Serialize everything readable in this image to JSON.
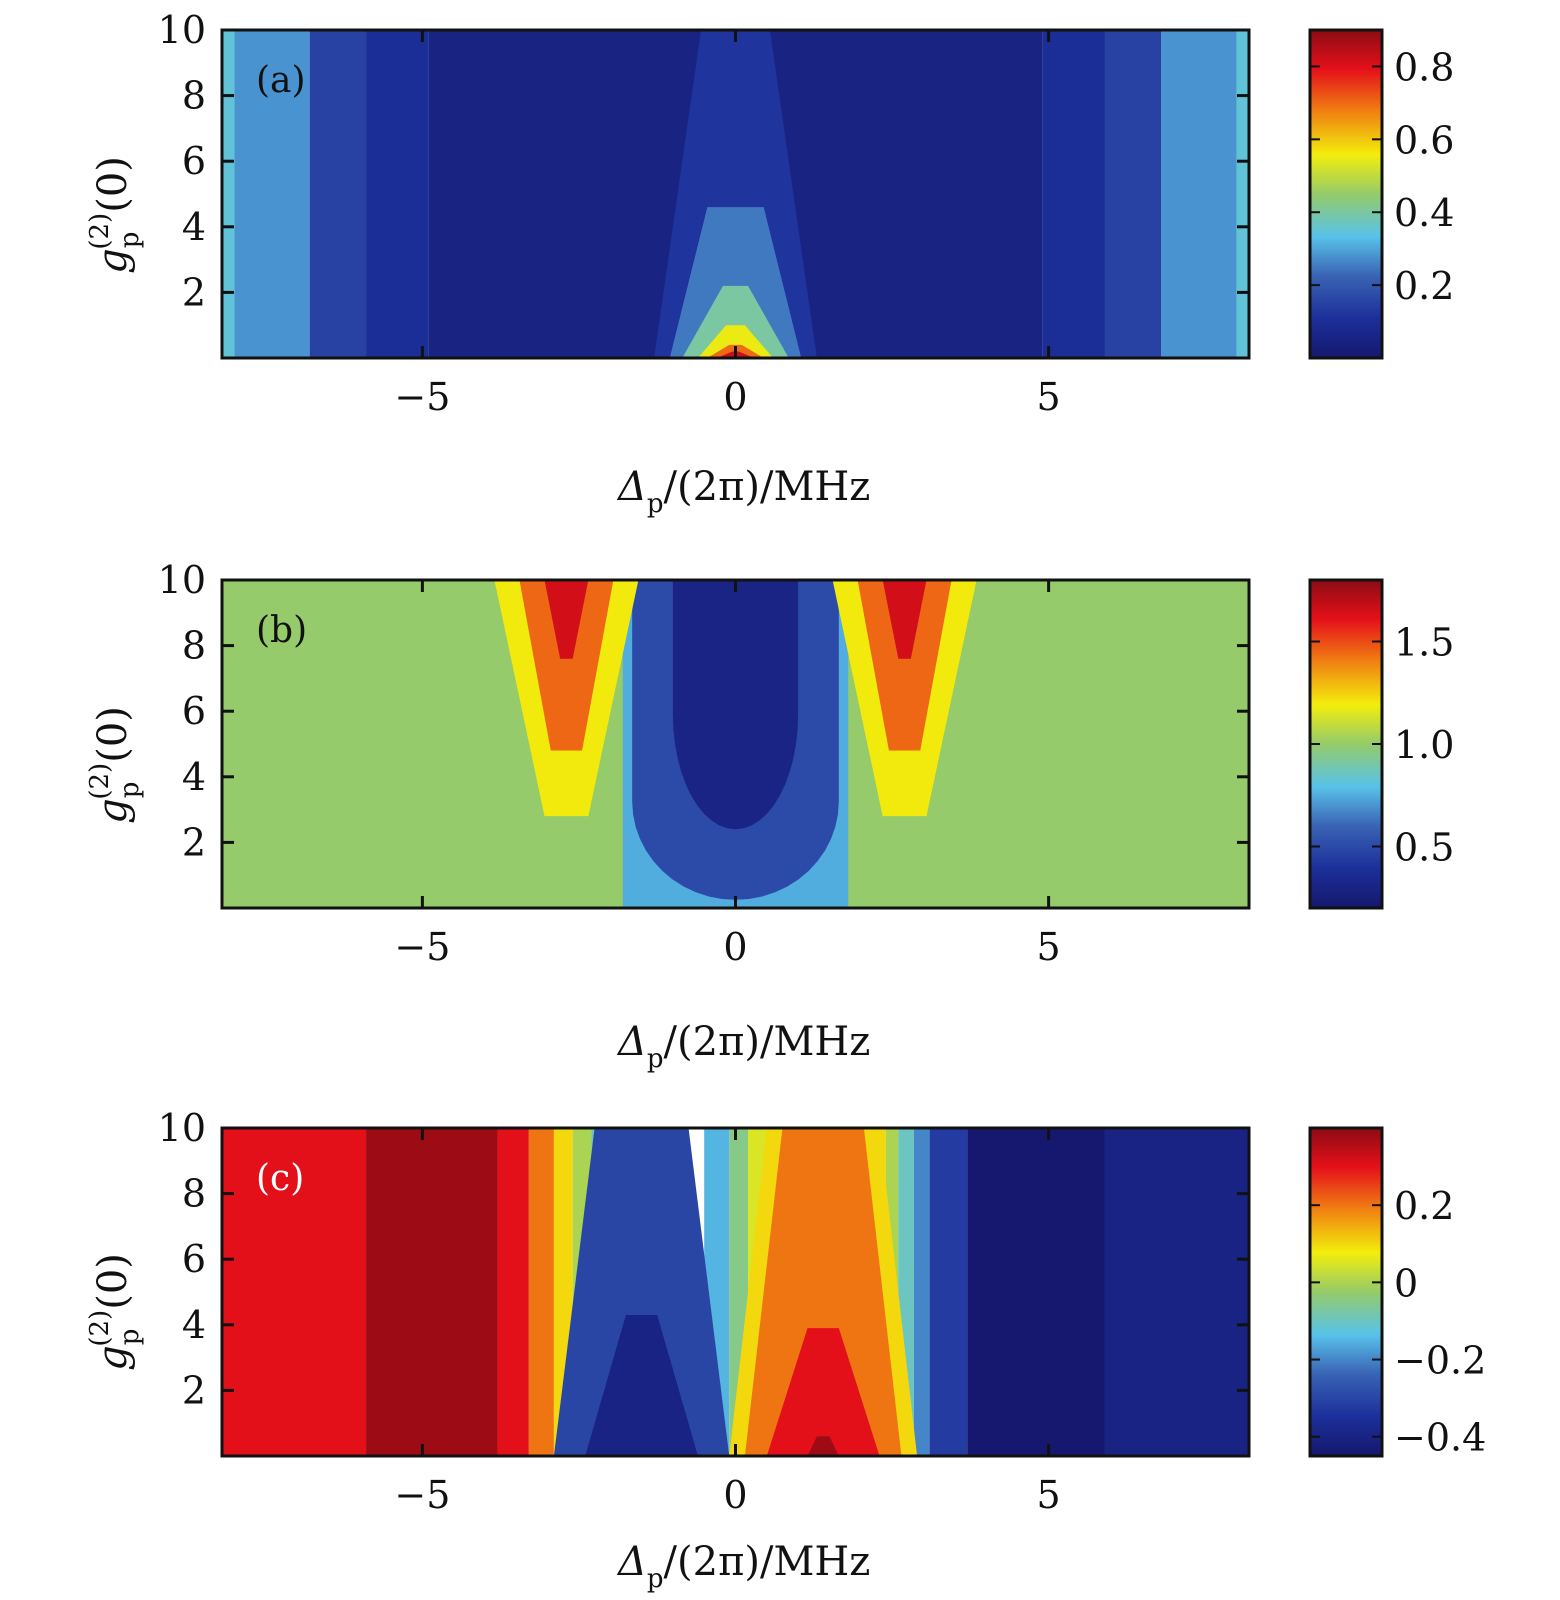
{
  "chart_data": [
    {
      "type": "heatmap",
      "panel_label": "(a)",
      "xlabel": "Δp/(2π)/MHz",
      "ylabel": "gp(2)(0)",
      "xlim": [
        -8.2,
        8.2
      ],
      "ylim": [
        0,
        10
      ],
      "x_ticks": [
        -5,
        0,
        5
      ],
      "x_tick_labels": [
        "−5",
        "0",
        "5"
      ],
      "y_ticks": [
        2,
        4,
        6,
        8,
        10
      ],
      "y_tick_labels": [
        "2",
        "4",
        "6",
        "8",
        "10"
      ],
      "colorbar": {
        "range": [
          0,
          0.9
        ],
        "ticks": [
          0.2,
          0.4,
          0.6,
          0.8
        ],
        "tick_labels": [
          "0.2",
          "0.4",
          "0.6",
          "0.8"
        ]
      },
      "description_of_field": "symmetric in detuning; minimum (~0.05) around |Δ| 2–5, rising toward edges (~0.3 at |Δ|≈8); central peak near Δ=0 reaching ~0.85 at g=0",
      "vertical_bands": [
        {
          "x": [
            -8.2,
            -8.0
          ],
          "value": 0.35
        },
        {
          "x": [
            -8.0,
            -6.8
          ],
          "value": 0.28
        },
        {
          "x": [
            -6.8,
            -5.9
          ],
          "value": 0.15
        },
        {
          "x": [
            -5.9,
            -4.9
          ],
          "value": 0.1
        },
        {
          "x": [
            -4.9,
            4.9
          ],
          "value": 0.05
        },
        {
          "x": [
            4.9,
            5.9
          ],
          "value": 0.1
        },
        {
          "x": [
            5.9,
            6.8
          ],
          "value": 0.15
        },
        {
          "x": [
            6.8,
            8.0
          ],
          "value": 0.28
        },
        {
          "x": [
            8.0,
            8.2
          ],
          "value": 0.35
        }
      ],
      "central_feature": [
        {
          "half_width_at_top": 0.55,
          "half_width_at_bottom": 1.3,
          "y_top": 10,
          "value": 0.12
        },
        {
          "half_width_at_top": 0.45,
          "half_width_at_bottom": 1.05,
          "y_top": 4.6,
          "value": 0.25
        },
        {
          "half_width_at_top": 0.2,
          "half_width_at_bottom": 0.85,
          "y_top": 2.2,
          "value": 0.4
        },
        {
          "half_width_at_top": 0.15,
          "half_width_at_bottom": 0.6,
          "y_top": 1.0,
          "value": 0.55
        },
        {
          "half_width_at_top": 0.1,
          "half_width_at_bottom": 0.45,
          "y_top": 0.4,
          "value": 0.7
        },
        {
          "half_width_at_top": 0.05,
          "half_width_at_bottom": 0.3,
          "y_top": 0.2,
          "value": 0.82
        }
      ]
    },
    {
      "type": "heatmap",
      "panel_label": "(b)",
      "xlabel": "Δp/(2π)/MHz",
      "ylabel": "gp(2)(0)",
      "xlim": [
        -8.2,
        8.2
      ],
      "ylim": [
        0,
        10
      ],
      "x_ticks": [
        -5,
        0,
        5
      ],
      "x_tick_labels": [
        "−5",
        "0",
        "5"
      ],
      "y_ticks": [
        2,
        4,
        6,
        8,
        10
      ],
      "y_tick_labels": [
        "2",
        "4",
        "6",
        "8",
        "10"
      ],
      "colorbar": {
        "range": [
          0.2,
          1.8
        ],
        "ticks": [
          0.5,
          1.0,
          1.5
        ],
        "tick_labels": [
          "0.5",
          "1.0",
          "1.5"
        ]
      },
      "description_of_field": "background ~1.0; central dip region |Δ|<1.8 with minimum ~0.25 near Δ=0, g>3; side lobes near Δ=±2.7 reaching ~1.6 at g=10",
      "background_value": 1.0,
      "central_dip": [
        {
          "half_width": 1.8,
          "y_bottom": 0,
          "value": 0.75
        },
        {
          "half_width": 1.65,
          "y_bottom": 0.25,
          "value": 0.5
        },
        {
          "half_width": 1.0,
          "y_bottom": 2.4,
          "value": 0.3
        }
      ],
      "side_lobes": [
        {
          "center": -2.7,
          "value_levels": [
            1.2,
            1.45,
            1.65
          ]
        },
        {
          "center": 2.7,
          "value_levels": [
            1.2,
            1.45,
            1.65
          ]
        }
      ]
    },
    {
      "type": "heatmap",
      "panel_label": "(c)",
      "xlabel": "Δp/(2π)/MHz",
      "ylabel": "gp(2)(0)",
      "xlim": [
        -8.2,
        8.2
      ],
      "ylim": [
        0,
        10
      ],
      "x_ticks": [
        -5,
        0,
        5
      ],
      "x_tick_labels": [
        "−5",
        "0",
        "5"
      ],
      "y_ticks": [
        2,
        4,
        6,
        8,
        10
      ],
      "y_tick_labels": [
        "2",
        "4",
        "6",
        "8",
        "10"
      ],
      "colorbar": {
        "range": [
          -0.45,
          0.4
        ],
        "ticks": [
          0.2,
          0,
          -0.2,
          -0.4
        ],
        "tick_labels": [
          "0.2",
          "0",
          "−0.2",
          "−0.4"
        ]
      },
      "description_of_field": "antisymmetric-like profile: high (~0.3) for Δ<-3.8, max (~0.38) at -5.9<Δ<-3.8; decreasing through 0 near Δ≈-1.5..0; low lobe near Δ=-1.5 (~-0.4); high lobe near Δ=+1.4 (~0.3); low (~-0.4) for Δ>3",
      "vertical_bands": [
        {
          "x": [
            -8.2,
            -5.9
          ],
          "value": 0.3
        },
        {
          "x": [
            -5.9,
            -3.8
          ],
          "value": 0.38
        },
        {
          "x": [
            -3.8,
            -3.3
          ],
          "value": 0.3
        },
        {
          "x": [
            -3.3,
            -2.9
          ],
          "value": 0.2
        },
        {
          "x": [
            -2.9,
            -2.6
          ],
          "value": 0.1
        },
        {
          "x": [
            -2.6,
            -2.3
          ],
          "value": 0.0
        },
        {
          "x": [
            -2.3,
            -2.0
          ],
          "value": -0.1
        },
        {
          "x": [
            -2.0,
            -1.7
          ],
          "value": -0.2
        },
        {
          "x": [
            -0.5,
            -0.1
          ],
          "value": -0.15
        },
        {
          "x": [
            -0.1,
            0.2
          ],
          "value": -0.05
        },
        {
          "x": [
            0.2,
            0.5
          ],
          "value": 0.05
        },
        {
          "x": [
            2.1,
            2.4
          ],
          "value": 0.1
        },
        {
          "x": [
            2.4,
            2.6
          ],
          "value": 0.0
        },
        {
          "x": [
            2.6,
            2.85
          ],
          "value": -0.1
        },
        {
          "x": [
            2.85,
            3.1
          ],
          "value": -0.2
        },
        {
          "x": [
            3.1,
            3.7
          ],
          "value": -0.32
        },
        {
          "x": [
            3.7,
            5.9
          ],
          "value": -0.45
        },
        {
          "x": [
            5.9,
            8.2
          ],
          "value": -0.4
        }
      ],
      "lobes": [
        {
          "center": -1.5,
          "levels": [
            {
              "half_width_top": 0.75,
              "half_width_bottom": 1.4,
              "y_top": 10,
              "value": -0.3
            },
            {
              "half_width_top": 0.25,
              "half_width_bottom": 0.9,
              "y_top": 4.3,
              "value": -0.4
            }
          ]
        },
        {
          "center": 1.4,
          "levels": [
            {
              "half_width_top": 0.9,
              "half_width_bottom": 1.5,
              "y_top": 10,
              "value": 0.1
            },
            {
              "half_width_top": 0.65,
              "half_width_bottom": 1.25,
              "y_top": 10,
              "value": 0.2
            },
            {
              "half_width_top": 0.25,
              "half_width_bottom": 0.9,
              "y_top": 3.9,
              "value": 0.3
            },
            {
              "half_width_top": 0.1,
              "half_width_bottom": 0.25,
              "y_top": 0.6,
              "value": 0.38
            }
          ]
        }
      ]
    }
  ]
}
